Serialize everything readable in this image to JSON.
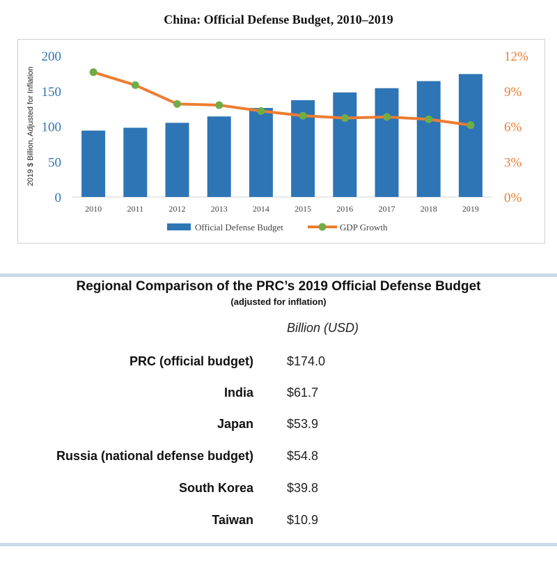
{
  "chart_data": {
    "type": "bar",
    "title": "China: Official Defense Budget, 2010–2019",
    "categories": [
      "2010",
      "2011",
      "2012",
      "2013",
      "2014",
      "2015",
      "2016",
      "2017",
      "2018",
      "2019"
    ],
    "series": [
      {
        "name": "Official Defense Budget",
        "type": "bar",
        "axis": "left",
        "values": [
          94,
          98,
          105,
          114,
          126,
          137,
          148,
          154,
          164,
          174
        ]
      },
      {
        "name": "GDP Growth",
        "type": "line",
        "axis": "right",
        "values": [
          10.6,
          9.5,
          7.9,
          7.8,
          7.3,
          6.9,
          6.7,
          6.8,
          6.6,
          6.1
        ]
      }
    ],
    "ylabel": "2019 $ Billion, Adjusted for Inflation",
    "ylim": [
      0,
      200
    ],
    "yticks": [
      "0",
      "50",
      "100",
      "150",
      "200"
    ],
    "y2lim": [
      0,
      12
    ],
    "y2ticks": [
      "0%",
      "3%",
      "6%",
      "9%",
      "12%"
    ],
    "legend": "bottom",
    "grid": false,
    "colors": {
      "bar": "#2e75b6",
      "line": "#ed7d31",
      "marker": "#70ad47",
      "left_axis": "#2e75b6",
      "right_axis": "#ed7d31"
    }
  },
  "table": {
    "title": "Regional Comparison of the PRC’s 2019 Official Defense Budget",
    "subtitle": "(adjusted for inflation)",
    "column_header": "Billion (USD)",
    "rows": [
      {
        "label": "PRC (official budget)",
        "value": "$174.0"
      },
      {
        "label": "India",
        "value": "$61.7"
      },
      {
        "label": "Japan",
        "value": "$53.9"
      },
      {
        "label": "Russia (national defense budget)",
        "value": "$54.8"
      },
      {
        "label": "South Korea",
        "value": "$39.8"
      },
      {
        "label": "Taiwan",
        "value": "$10.9"
      }
    ]
  }
}
